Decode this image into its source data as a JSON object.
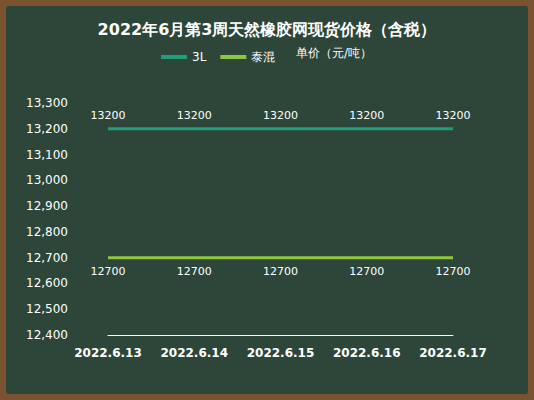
{
  "chart_data": {
    "type": "line",
    "title": "2022年6月第3周天然橡胶网现货价格（含税）",
    "y_label": "单价（元/吨）",
    "categories": [
      "2022.6.13",
      "2022.6.14",
      "2022.6.15",
      "2022.6.16",
      "2022.6.17"
    ],
    "series": [
      {
        "name": "3L",
        "color": "#1e9e7a",
        "values": [
          13200,
          13200,
          13200,
          13200,
          13200
        ]
      },
      {
        "name": "泰混",
        "color": "#8cc63f",
        "values": [
          12700,
          12700,
          12700,
          12700,
          12700
        ]
      }
    ],
    "ylim": [
      12400,
      13300
    ],
    "yticks": [
      12400,
      12500,
      12600,
      12700,
      12800,
      12900,
      13000,
      13100,
      13200,
      13300
    ],
    "grid": false,
    "legend": "top",
    "data_labels": true
  }
}
